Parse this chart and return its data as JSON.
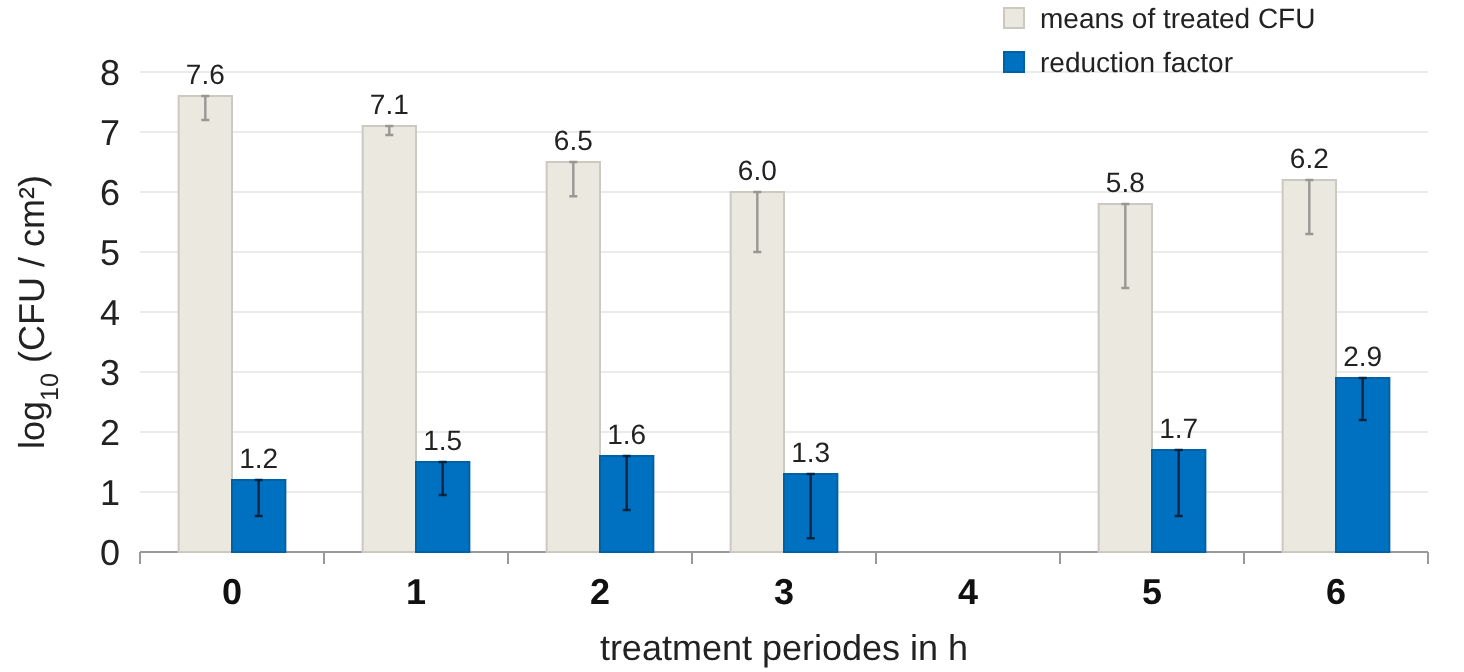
{
  "chart_data": {
    "type": "bar",
    "xlabel": "treatment periodes in h",
    "ylabel": "log$_{10}$ (CFU / cm²)",
    "categories": [
      "0",
      "1",
      "2",
      "3",
      "4",
      "5",
      "6"
    ],
    "series": [
      {
        "name": "means of treated CFU",
        "color": "#eae8df",
        "values": [
          7.6,
          7.1,
          6.5,
          6.0,
          null,
          5.8,
          6.2
        ],
        "value_labels": [
          "7.6",
          "7.1",
          "6.5",
          "6.0",
          null,
          "5.8",
          "6.2"
        ],
        "errors": [
          [
            7.2,
            7.6
          ],
          [
            6.95,
            7.1
          ],
          [
            5.93,
            6.5
          ],
          [
            5.0,
            6.0
          ],
          null,
          [
            4.4,
            5.8
          ],
          [
            5.3,
            6.2
          ]
        ]
      },
      {
        "name": "reduction factor",
        "color": "#0070c0",
        "values": [
          1.2,
          1.5,
          1.6,
          1.3,
          null,
          1.7,
          2.9
        ],
        "value_labels": [
          "1.2",
          "1.5",
          "1.6",
          "1.3",
          null,
          "1.7",
          "2.9"
        ],
        "errors": [
          [
            0.6,
            1.2
          ],
          [
            0.95,
            1.5
          ],
          [
            0.7,
            1.6
          ],
          [
            0.23,
            1.3
          ],
          null,
          [
            0.6,
            1.7
          ],
          [
            2.2,
            2.9
          ]
        ]
      }
    ],
    "ylim": [
      0,
      8
    ],
    "yticks": [
      0,
      1,
      2,
      3,
      4,
      5,
      6,
      7,
      8
    ],
    "grid": "y",
    "legend": "top right"
  }
}
